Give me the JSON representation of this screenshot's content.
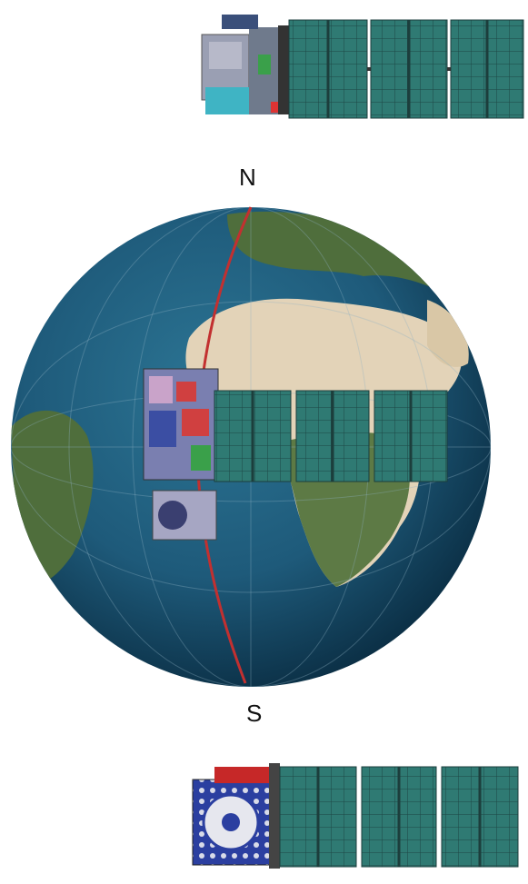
{
  "labels": {
    "north": "N",
    "south": "S"
  },
  "icons": [
    "satellite-top-icon",
    "satellite-middle-icon",
    "satellite-bottom-icon",
    "earth-globe",
    "orbit-track"
  ],
  "colors": {
    "ocean": "#1e5a7a",
    "ocean_deep": "#0f3a55",
    "land_sahara": "#e3d3b8",
    "land_green": "#4f6e3c",
    "orbit": "#c23030",
    "panel": "#2f7a73",
    "panel_frame": "#1c3e3c",
    "satellite_body": "#8a8fa8"
  }
}
